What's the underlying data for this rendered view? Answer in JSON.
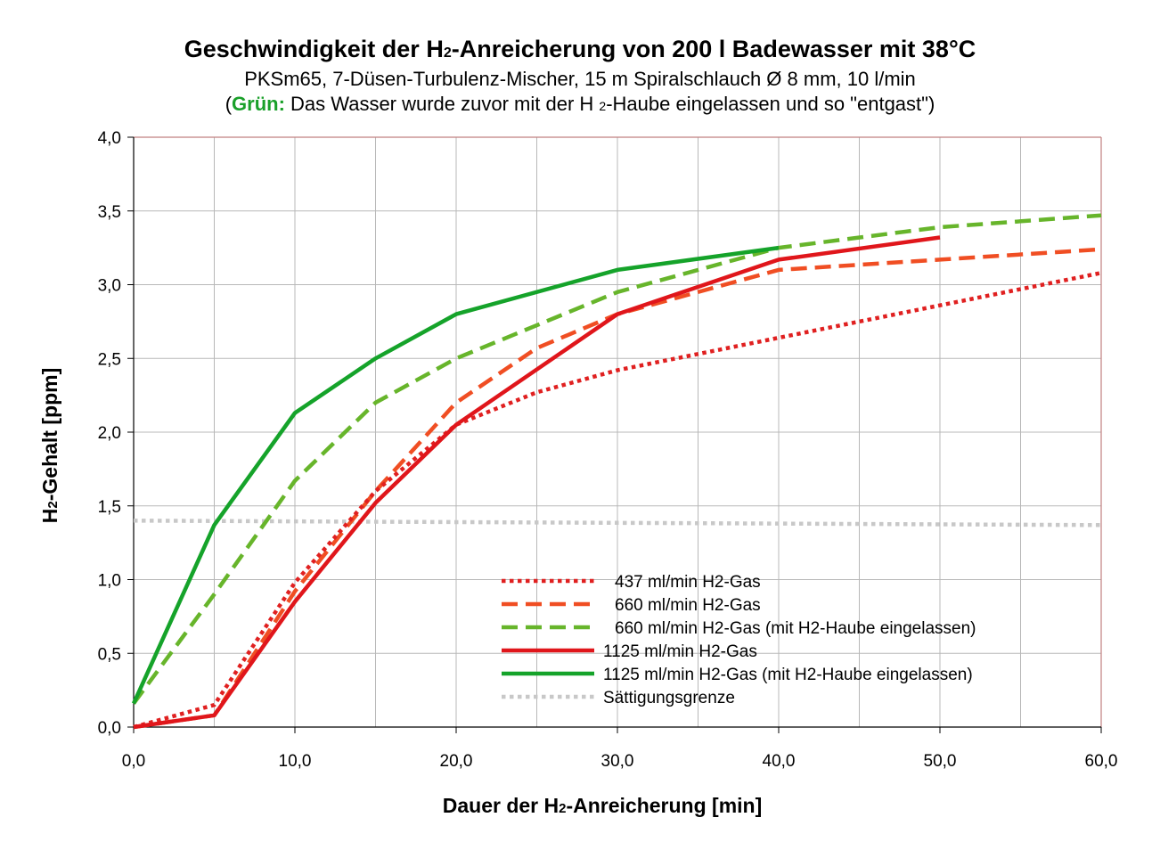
{
  "title": {
    "main_before": "Geschwindigkeit der H",
    "main_sub": "2",
    "main_after": "-Anreicherung von 200 l Badewasser mit 38°C",
    "subtitle": "PKSm65, 7-Düsen-Turbulenz-Mischer, 15 m Spiralschlauch Ø 8 mm, 10 l/min",
    "note_open": "(",
    "note_green": "Grün:",
    "note_before": " Das Wasser wurde zuvor mit der H ",
    "note_sub": "2",
    "note_after": "-Haube eingelassen und so \"entgast\")"
  },
  "chart_data": {
    "type": "line",
    "xlabel_before": "Dauer der H",
    "xlabel_sub": "2",
    "xlabel_after": "-Anreicherung [min]",
    "ylabel_before": "H",
    "ylabel_sub": "2",
    "ylabel_after": "-Gehalt [ppm]",
    "xlim": [
      0,
      60
    ],
    "ylim": [
      0,
      4
    ],
    "x_ticks": [
      0,
      10,
      20,
      30,
      40,
      50,
      60
    ],
    "x_tick_labels": [
      "0,0",
      "10,0",
      "20,0",
      "30,0",
      "40,0",
      "50,0",
      "60,0"
    ],
    "y_ticks": [
      0,
      0.5,
      1,
      1.5,
      2,
      2.5,
      3,
      3.5,
      4
    ],
    "y_tick_labels": [
      "0,0",
      "0,5",
      "1,0",
      "1,5",
      "2,0",
      "2,5",
      "3,0",
      "3,5",
      "4,0"
    ],
    "grid": true,
    "legend_position": "bottom-right",
    "series": [
      {
        "name": "437 ml/min H2-Gas",
        "color": "#e02020",
        "style": "dotted",
        "x": [
          0,
          5,
          10,
          15,
          20,
          25,
          30,
          40,
          50,
          60
        ],
        "y": [
          0.0,
          0.15,
          0.98,
          1.6,
          2.05,
          2.27,
          2.42,
          2.64,
          2.86,
          3.08
        ]
      },
      {
        "name": "660 ml/min H2-Gas",
        "color": "#f04e23",
        "style": "dashed",
        "x": [
          0,
          5,
          10,
          15,
          20,
          25,
          30,
          40,
          50,
          60
        ],
        "y": [
          0.0,
          0.08,
          0.92,
          1.6,
          2.2,
          2.57,
          2.8,
          3.1,
          3.17,
          3.24
        ]
      },
      {
        "name": "660 ml/min H2-Gas (mit H2-Haube eingelassen)",
        "color": "#67b52b",
        "style": "dashed",
        "x": [
          0,
          5,
          10,
          15,
          20,
          30,
          40,
          50,
          60
        ],
        "y": [
          0.16,
          0.9,
          1.67,
          2.2,
          2.5,
          2.95,
          3.25,
          3.39,
          3.47
        ]
      },
      {
        "name": "1125 ml/min H2-Gas",
        "color": "#e0161b",
        "style": "solid",
        "x": [
          0,
          5,
          10,
          15,
          20,
          30,
          40,
          50
        ],
        "y": [
          0.0,
          0.08,
          0.85,
          1.52,
          2.05,
          2.8,
          3.17,
          3.32
        ]
      },
      {
        "name": "1125 ml/min H2-Gas (mit H2-Haube eingelassen)",
        "color": "#15a32a",
        "style": "solid",
        "x": [
          0,
          5,
          10,
          15,
          20,
          30,
          40
        ],
        "y": [
          0.16,
          1.37,
          2.13,
          2.5,
          2.8,
          3.1,
          3.25
        ]
      },
      {
        "name": "Sättigungsgrenze",
        "color": "#c8c8c8",
        "style": "dotted",
        "x": [
          0,
          60
        ],
        "y": [
          1.4,
          1.37
        ]
      }
    ]
  }
}
